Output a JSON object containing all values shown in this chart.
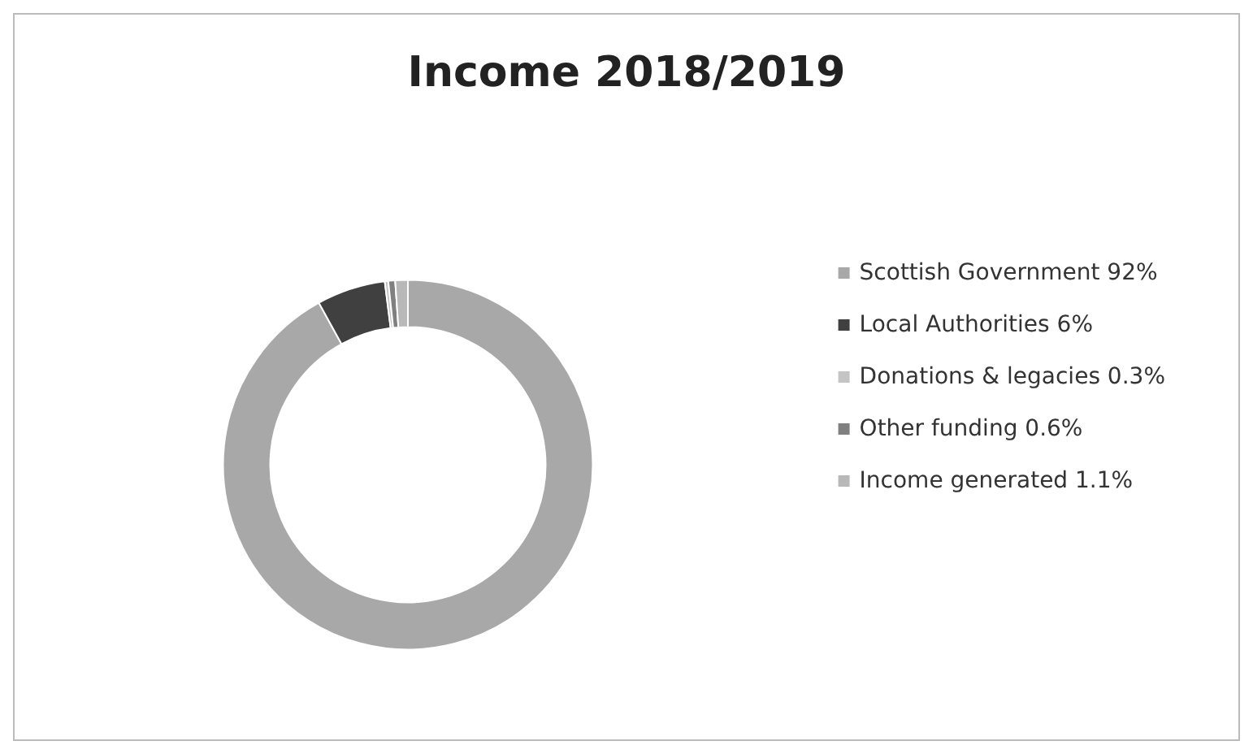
{
  "chart_data": {
    "type": "donut",
    "title": "Income 2018/2019",
    "categories": [
      "Scottish Government 92%",
      "Local Authorities 6%",
      "Donations & legacies 0.3%",
      "Other funding 0.6%",
      "Income generated 1.1%"
    ],
    "values": [
      92,
      6,
      0.3,
      0.6,
      1.1
    ],
    "colors": [
      "#a8a8a8",
      "#404040",
      "#c4c4c4",
      "#808080",
      "#b8b8b8"
    ],
    "legend": "right"
  }
}
